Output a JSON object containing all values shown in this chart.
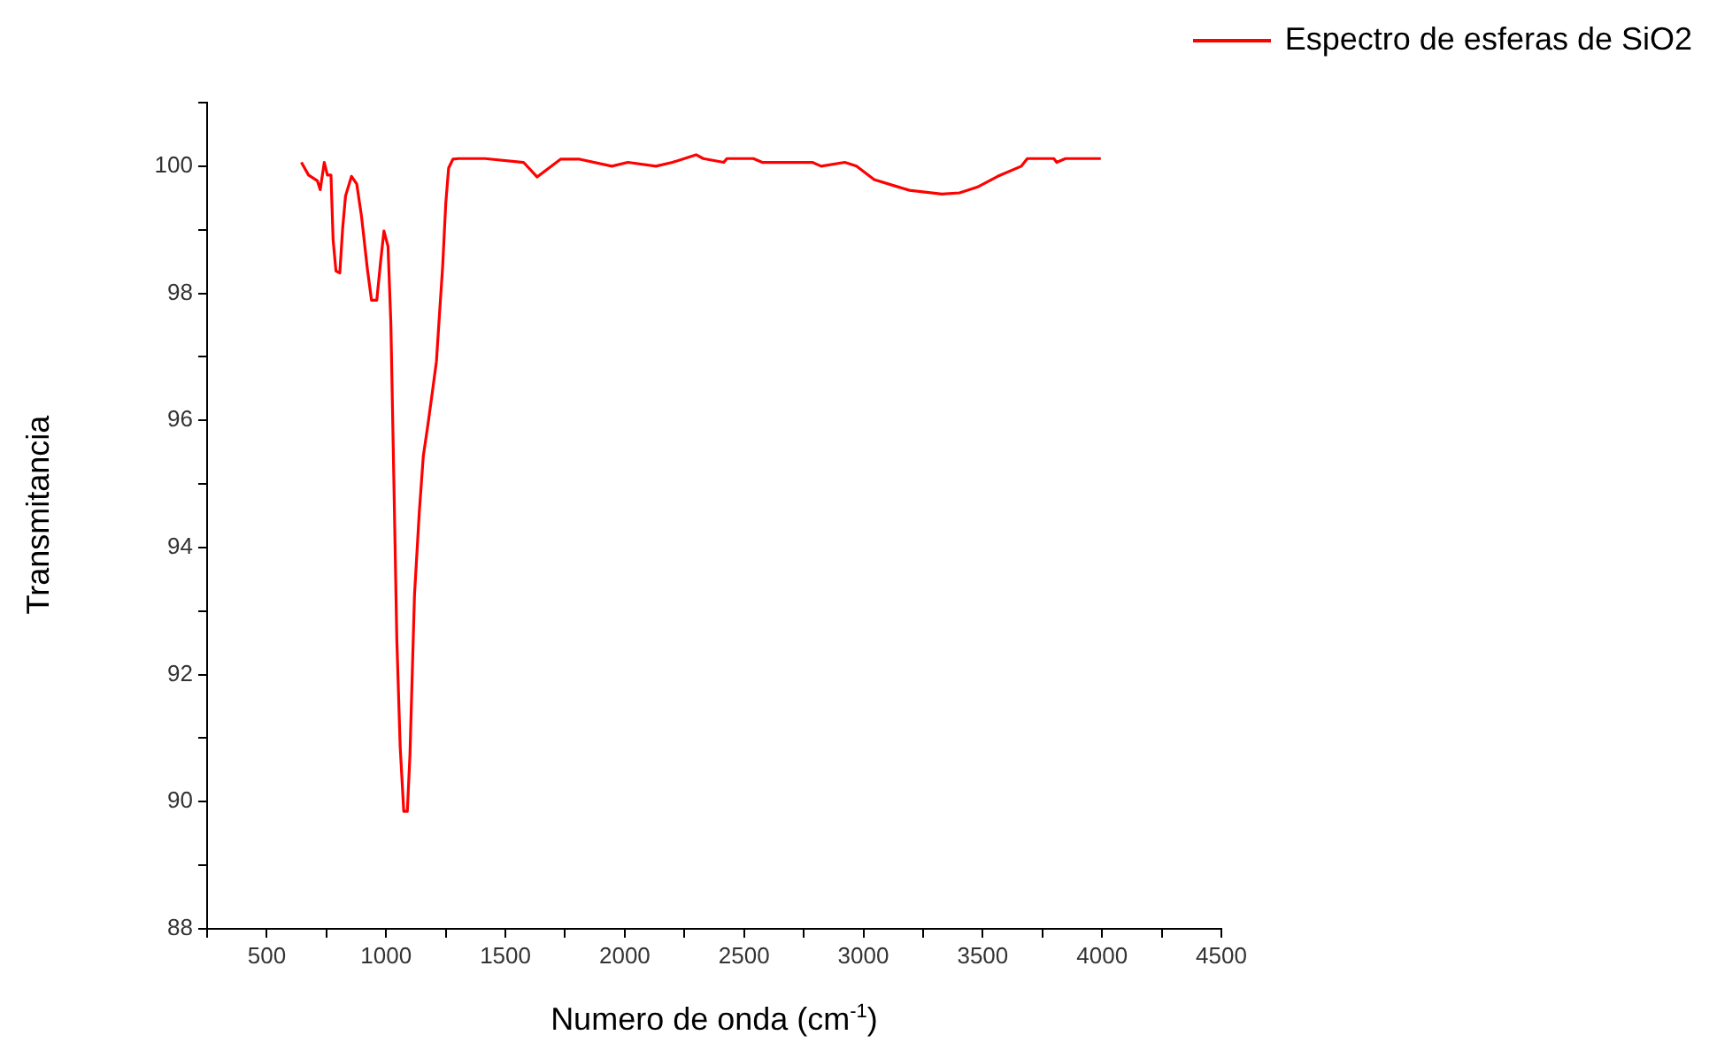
{
  "chart_data": {
    "type": "line",
    "xlabel": "Numero de onda (cm$^{-1}$)",
    "ylabel": "Transmitancia",
    "legend": "top right",
    "grid": false,
    "marker": "none",
    "line_style": "solid",
    "xlim": [
      250,
      4500
    ],
    "ylim": [
      88,
      101
    ],
    "xticks": [
      {
        "value": 250,
        "label": null
      },
      500,
      {
        "value": 750,
        "label": null
      },
      1000,
      {
        "value": 1250,
        "label": null
      },
      1500,
      {
        "value": 1750,
        "label": null
      },
      2000,
      {
        "value": 2250,
        "label": null
      },
      2500,
      {
        "value": 2750,
        "label": null
      },
      3000,
      {
        "value": 3250,
        "label": null
      },
      3500,
      {
        "value": 3750,
        "label": null
      },
      4000,
      {
        "value": 4250,
        "label": null
      },
      4500
    ],
    "yticks": [
      88,
      {
        "value": 89,
        "label": null
      },
      90,
      {
        "value": 91,
        "label": null
      },
      92,
      {
        "value": 93,
        "label": null
      },
      94,
      {
        "value": 95,
        "label": null
      },
      96,
      {
        "value": 97,
        "label": null
      },
      98,
      {
        "value": 99,
        "label": null
      },
      100,
      {
        "value": 101,
        "label": null
      }
    ],
    "series": [
      {
        "name": "Espectro de esferas de SiO2",
        "color": "#ff0000",
        "x": [
          645,
          675,
          712,
          724,
          741,
          754,
          769,
          778,
          790,
          806,
          818,
          830,
          855,
          877,
          897,
          922,
          939,
          961,
          976,
          991,
          1008,
          1020,
          1032,
          1045,
          1059,
          1074,
          1089,
          1100,
          1119,
          1139,
          1156,
          1174,
          1193,
          1211,
          1223,
          1237,
          1250,
          1262,
          1280,
          1304,
          1415,
          1576,
          1633,
          1731,
          1811,
          1946,
          2013,
          2131,
          2200,
          2299,
          2329,
          2415,
          2428,
          2539,
          2576,
          2786,
          2823,
          2922,
          2971,
          3045,
          3131,
          3193,
          3329,
          3403,
          3477,
          3563,
          3662,
          3687,
          3798,
          3810,
          3847,
          3995
        ],
        "values": [
          100.06,
          99.86,
          99.77,
          99.63,
          100.06,
          99.86,
          99.86,
          98.84,
          98.35,
          98.32,
          99.02,
          99.53,
          99.84,
          99.72,
          99.21,
          98.37,
          97.89,
          97.89,
          98.46,
          98.98,
          98.74,
          97.53,
          95.16,
          92.55,
          90.87,
          89.85,
          89.85,
          90.74,
          93.25,
          94.55,
          95.44,
          95.9,
          96.42,
          96.93,
          97.63,
          98.42,
          99.41,
          99.97,
          100.11,
          100.12,
          100.12,
          100.06,
          99.83,
          100.11,
          100.11,
          100.0,
          100.06,
          100.0,
          100.06,
          100.18,
          100.12,
          100.06,
          100.12,
          100.12,
          100.06,
          100.06,
          100.0,
          100.06,
          100.0,
          99.79,
          99.69,
          99.62,
          99.56,
          99.58,
          99.67,
          99.84,
          100.0,
          100.12,
          100.12,
          100.06,
          100.12,
          100.12
        ]
      }
    ]
  }
}
